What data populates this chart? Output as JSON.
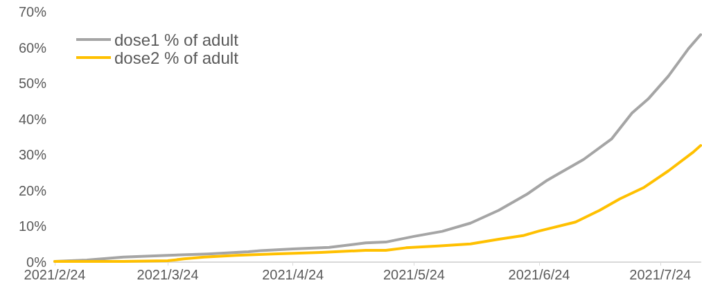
{
  "chart_data": {
    "type": "line",
    "xlim": [
      "2021-02-24",
      "2021-08-03"
    ],
    "xticks": [
      {
        "value": "2021-02-24",
        "label": "2021/2/24"
      },
      {
        "value": "2021-03-24",
        "label": "2021/3/24"
      },
      {
        "value": "2021-04-24",
        "label": "2021/4/24"
      },
      {
        "value": "2021-05-24",
        "label": "2021/5/24"
      },
      {
        "value": "2021-06-24",
        "label": "2021/6/24"
      },
      {
        "value": "2021-07-24",
        "label": "2021/7/24"
      }
    ],
    "ylim": [
      0,
      70
    ],
    "yticks": [
      {
        "value": 0,
        "label": "0%"
      },
      {
        "value": 10,
        "label": "10%"
      },
      {
        "value": 20,
        "label": "20%"
      },
      {
        "value": 30,
        "label": "30%"
      },
      {
        "value": 40,
        "label": "40%"
      },
      {
        "value": 50,
        "label": "50%"
      },
      {
        "value": 60,
        "label": "60%"
      },
      {
        "value": 70,
        "label": "70%"
      }
    ],
    "grid": false,
    "legend": "top left",
    "marker": "none",
    "line_style": "solid",
    "series": [
      {
        "name": "dose1 % of adult",
        "color": "#a5a5a5",
        "x": [
          "2021-02-24",
          "2021-03-04",
          "2021-03-13",
          "2021-03-24",
          "2021-04-03",
          "2021-04-13",
          "2021-04-16",
          "2021-04-24",
          "2021-05-03",
          "2021-05-12",
          "2021-05-17",
          "2021-05-24",
          "2021-05-31",
          "2021-06-07",
          "2021-06-14",
          "2021-06-21",
          "2021-06-26",
          "2021-07-05",
          "2021-07-12",
          "2021-07-17",
          "2021-07-21",
          "2021-07-26",
          "2021-07-31",
          "2021-08-03"
        ],
        "values": [
          0.2,
          0.6,
          1.4,
          1.9,
          2.3,
          2.9,
          3.2,
          3.7,
          4.1,
          5.4,
          5.6,
          7.2,
          8.6,
          10.9,
          14.5,
          19.0,
          22.9,
          28.7,
          34.5,
          41.7,
          45.6,
          52.0,
          59.7,
          63.6
        ]
      },
      {
        "name": "dose2 % of adult",
        "color": "#ffc000",
        "x": [
          "2021-02-24",
          "2021-03-13",
          "2021-03-24",
          "2021-03-28",
          "2021-04-02",
          "2021-04-10",
          "2021-04-19",
          "2021-05-01",
          "2021-05-12",
          "2021-05-17",
          "2021-05-22",
          "2021-05-30",
          "2021-06-07",
          "2021-06-14",
          "2021-06-20",
          "2021-06-24",
          "2021-07-03",
          "2021-07-09",
          "2021-07-14",
          "2021-07-20",
          "2021-07-26",
          "2021-08-01",
          "2021-08-03"
        ],
        "values": [
          0.2,
          0.2,
          0.4,
          0.9,
          1.4,
          1.9,
          2.3,
          2.7,
          3.3,
          3.3,
          4.0,
          4.5,
          5.1,
          6.4,
          7.4,
          8.7,
          11.2,
          14.5,
          17.7,
          20.9,
          25.5,
          30.6,
          32.6
        ]
      }
    ]
  }
}
